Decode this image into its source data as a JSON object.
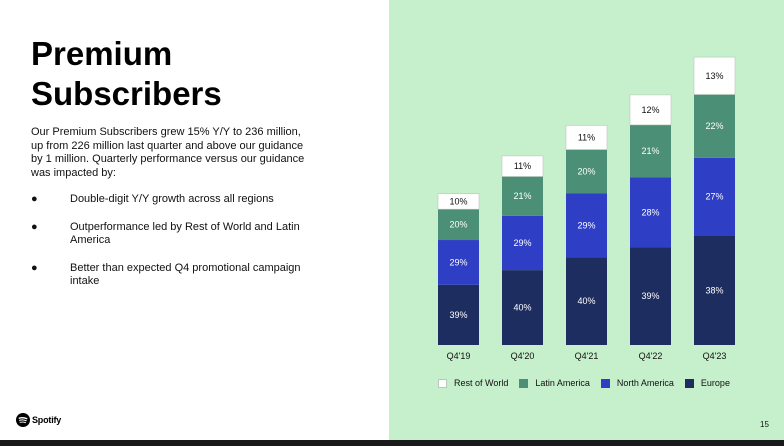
{
  "slide": {
    "title_line1": "Premium",
    "title_line2": "Subscribers",
    "intro": "Our Premium Subscribers grew 15% Y/Y to 236 million, up from 226 million last quarter and above our guidance by 1 million. Quarterly performance versus our guidance was impacted by:",
    "bullets": [
      "Double-digit Y/Y growth across all regions",
      "Outperformance led by Rest of World and Latin America",
      "Better than expected Q4 promotional campaign intake"
    ],
    "bullet_glyph": "●",
    "logo_text": "Spotify",
    "logo_icon": "spotify-logo-icon",
    "page_number": "15"
  },
  "colors": {
    "right_panel_bg": "#c6efcc",
    "rest_of_world": "#ffffff",
    "latin_america": "#4a8f76",
    "north_america": "#2e3fc6",
    "europe": "#1e2d5f"
  },
  "chart_data": {
    "type": "bar",
    "stacked": true,
    "categories": [
      "Q4'19",
      "Q4'20",
      "Q4'21",
      "Q4'22",
      "Q4'23"
    ],
    "totals_millions": [
      124,
      155,
      180,
      205,
      236
    ],
    "series": [
      {
        "name": "Europe",
        "values": [
          39,
          40,
          40,
          39,
          38
        ],
        "labels": [
          "39%",
          "40%",
          "40%",
          "39%",
          "38%"
        ],
        "color": "#1e2d5f"
      },
      {
        "name": "North America",
        "values": [
          29,
          29,
          29,
          28,
          27
        ],
        "labels": [
          "29%",
          "29%",
          "29%",
          "28%",
          "27%"
        ],
        "color": "#2e3fc6"
      },
      {
        "name": "Latin America",
        "values": [
          20,
          21,
          20,
          21,
          22
        ],
        "labels": [
          "20%",
          "21%",
          "20%",
          "21%",
          "22%"
        ],
        "color": "#4a8f76"
      },
      {
        "name": "Rest of World",
        "values": [
          10,
          11,
          11,
          12,
          13
        ],
        "labels": [
          "10%",
          "11%",
          "11%",
          "12%",
          "13%"
        ],
        "color": "#ffffff"
      }
    ],
    "legend_order": [
      "Rest of World",
      "Latin America",
      "North America",
      "Europe"
    ],
    "legend_position": "bottom",
    "grid": false,
    "ylim": [
      0,
      250
    ]
  }
}
